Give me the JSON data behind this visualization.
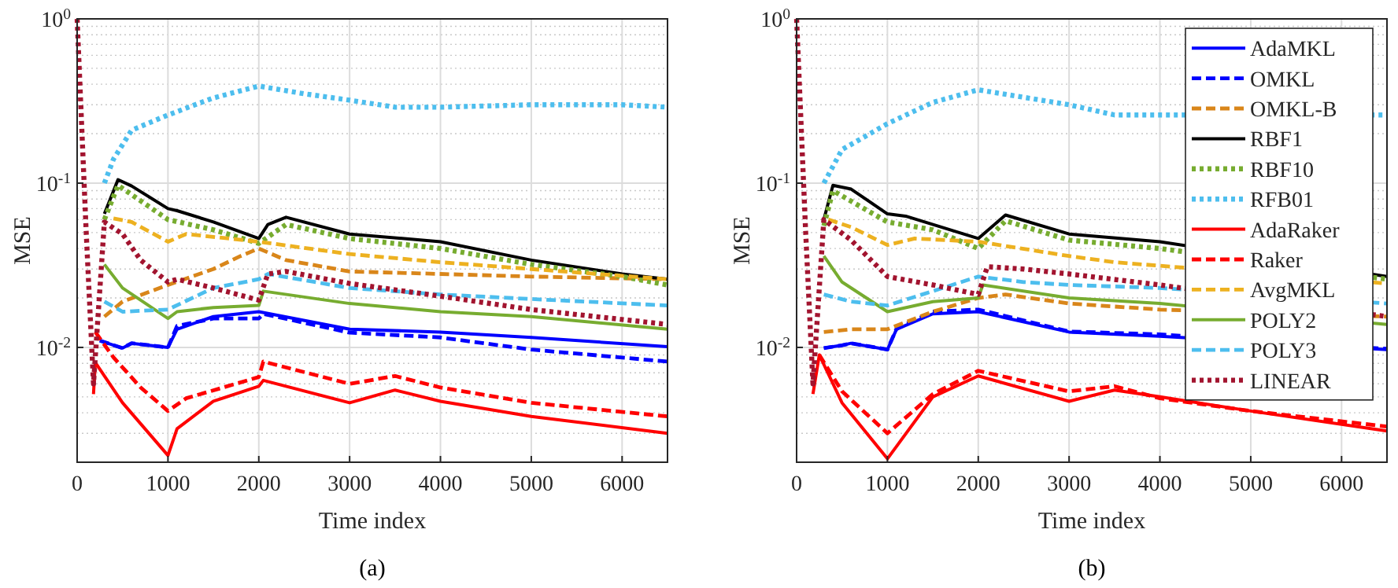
{
  "chart_data": [
    {
      "type": "line",
      "title": "(a)",
      "xlabel": "Time index",
      "ylabel": "MSE",
      "xlim": [
        0,
        6500
      ],
      "xticks": [
        0,
        1000,
        2000,
        3000,
        4000,
        5000,
        6000
      ],
      "ylim": [
        0.002,
        1
      ],
      "yticks": [
        {
          "value": 0.01,
          "label": "10$^{-2}$"
        },
        {
          "value": 0.1,
          "label": "10$^{-1}$"
        },
        {
          "value": 1,
          "label": "10$^{0}$"
        }
      ],
      "log": true,
      "grid": true,
      "legend": false,
      "series": [
        {
          "color": "#0000ff",
          "line_style": "solid",
          "x": [
            250,
            500,
            600,
            1000,
            1100,
            1500,
            2000,
            3000,
            4000,
            5000,
            6500
          ],
          "values": [
            0.011,
            0.0099,
            0.0106,
            0.01,
            0.0129,
            0.0154,
            0.0165,
            0.0129,
            0.0124,
            0.0115,
            0.0101
          ]
        },
        {
          "color": "#0000ff",
          "line_style": "dashed",
          "x": [
            250,
            500,
            600,
            1000,
            1100,
            1500,
            2000,
            2050,
            3000,
            4000,
            5000,
            6500
          ],
          "values": [
            0.011,
            0.0099,
            0.0106,
            0.01,
            0.0135,
            0.015,
            0.015,
            0.016,
            0.0123,
            0.0115,
            0.0097,
            0.0082
          ]
        },
        {
          "color": "#d9861a",
          "line_style": "dashed",
          "x": [
            300,
            500,
            1000,
            1500,
            1800,
            2000,
            2300,
            3000,
            4000,
            5000,
            6500
          ],
          "values": [
            0.0154,
            0.019,
            0.024,
            0.03,
            0.036,
            0.04,
            0.034,
            0.029,
            0.028,
            0.027,
            0.026
          ]
        },
        {
          "color": "#000000",
          "line_style": "solid",
          "x": [
            300,
            450,
            600,
            1000,
            1100,
            1500,
            2000,
            2100,
            2300,
            3000,
            4000,
            5000,
            6000,
            6500
          ],
          "values": [
            0.065,
            0.105,
            0.096,
            0.07,
            0.068,
            0.058,
            0.046,
            0.056,
            0.062,
            0.049,
            0.044,
            0.034,
            0.028,
            0.026
          ]
        },
        {
          "color": "#77ac30",
          "line_style": "dotted",
          "x": [
            300,
            450,
            1000,
            1500,
            2000,
            2300,
            3000,
            4000,
            5000,
            6000,
            6500
          ],
          "values": [
            0.06,
            0.097,
            0.06,
            0.052,
            0.043,
            0.056,
            0.046,
            0.04,
            0.032,
            0.027,
            0.024
          ]
        },
        {
          "color": "#4dbeee",
          "line_style": "dotted",
          "x": [
            300,
            400,
            600,
            1000,
            1500,
            2000,
            2500,
            3000,
            3500,
            4000,
            5000,
            6000,
            6500
          ],
          "values": [
            0.1,
            0.14,
            0.21,
            0.26,
            0.33,
            0.39,
            0.35,
            0.32,
            0.29,
            0.29,
            0.3,
            0.3,
            0.29
          ]
        },
        {
          "color": "#ff0000",
          "line_style": "solid",
          "x": [
            180,
            200,
            500,
            1000,
            1100,
            1500,
            2000,
            2050,
            3000,
            3500,
            4000,
            5000,
            6500
          ],
          "values": [
            0.0052,
            0.0081,
            0.0046,
            0.0022,
            0.0032,
            0.0047,
            0.0058,
            0.0063,
            0.0046,
            0.0055,
            0.0047,
            0.0038,
            0.003
          ]
        },
        {
          "color": "#ff0000",
          "line_style": "dashed",
          "x": [
            200,
            400,
            700,
            1000,
            1200,
            2000,
            2050,
            3000,
            3500,
            4000,
            5000,
            6500
          ],
          "values": [
            0.0124,
            0.0087,
            0.0057,
            0.0041,
            0.0049,
            0.0066,
            0.0082,
            0.006,
            0.0067,
            0.0057,
            0.0046,
            0.0038
          ]
        },
        {
          "color": "#edb120",
          "line_style": "dashed",
          "x": [
            400,
            600,
            1000,
            1200,
            2000,
            3000,
            4000,
            5000,
            6500
          ],
          "values": [
            0.061,
            0.058,
            0.044,
            0.049,
            0.044,
            0.037,
            0.033,
            0.03,
            0.026
          ]
        },
        {
          "color": "#77ac30",
          "line_style": "solid",
          "x": [
            300,
            500,
            1000,
            1100,
            1500,
            2000,
            2050,
            3000,
            4000,
            5000,
            6500
          ],
          "values": [
            0.032,
            0.023,
            0.015,
            0.0165,
            0.0175,
            0.018,
            0.022,
            0.0185,
            0.0165,
            0.0154,
            0.0129
          ]
        },
        {
          "color": "#4dbeee",
          "line_style": "dashed",
          "x": [
            300,
            500,
            1000,
            1500,
            2000,
            2100,
            3000,
            4000,
            5000,
            6500
          ],
          "values": [
            0.019,
            0.0165,
            0.017,
            0.023,
            0.026,
            0.028,
            0.023,
            0.021,
            0.0197,
            0.018
          ]
        },
        {
          "color": "#a2142f",
          "line_style": "dotted",
          "x": [
            0,
            100,
            180,
            300,
            500,
            700,
            1000,
            1100,
            1500,
            2000,
            2100,
            2300,
            3000,
            4000,
            5000,
            6500
          ],
          "values": [
            1,
            0.05,
            0.006,
            0.058,
            0.049,
            0.034,
            0.025,
            0.026,
            0.023,
            0.0194,
            0.028,
            0.029,
            0.0245,
            0.0205,
            0.017,
            0.0138
          ]
        }
      ]
    },
    {
      "type": "line",
      "title": "(b)",
      "xlabel": "Time index",
      "ylabel": "MSE",
      "xlim": [
        0,
        6500
      ],
      "xticks": [
        0,
        1000,
        2000,
        3000,
        4000,
        5000,
        6000
      ],
      "ylim": [
        0.002,
        1
      ],
      "yticks": [
        {
          "value": 0.01,
          "label": "10$^{-2}$"
        },
        {
          "value": 0.1,
          "label": "10$^{-1}$"
        },
        {
          "value": 1,
          "label": "10$^{0}$"
        }
      ],
      "log": true,
      "grid": true,
      "legend": "top right",
      "series": [
        {
          "name": "AdaMKL",
          "color": "#0000ff",
          "line_style": "solid",
          "x": [
            300,
            500,
            600,
            1000,
            1100,
            1500,
            2000,
            3000,
            4000,
            6500
          ],
          "values": [
            0.0099,
            0.0103,
            0.0106,
            0.0097,
            0.0129,
            0.016,
            0.0165,
            0.0124,
            0.0117,
            0.0097
          ]
        },
        {
          "name": "OMKL",
          "color": "#0000ff",
          "line_style": "dashed",
          "x": [
            300,
            500,
            600,
            1000,
            1100,
            1500,
            2000,
            3000,
            4000,
            6500
          ],
          "values": [
            0.0099,
            0.0103,
            0.0106,
            0.0097,
            0.013,
            0.0165,
            0.017,
            0.0125,
            0.012,
            0.0098
          ]
        },
        {
          "name": "OMKL-B",
          "color": "#d9861a",
          "line_style": "dashed",
          "x": [
            300,
            600,
            1000,
            1500,
            2000,
            2300,
            3000,
            4000,
            6500
          ],
          "values": [
            0.0124,
            0.0129,
            0.0129,
            0.0165,
            0.02,
            0.021,
            0.0185,
            0.017,
            0.0154
          ]
        },
        {
          "name": "RBF1",
          "color": "#000000",
          "line_style": "solid",
          "x": [
            300,
            400,
            600,
            1000,
            1200,
            2000,
            2300,
            3000,
            4000,
            6500
          ],
          "values": [
            0.06,
            0.097,
            0.092,
            0.065,
            0.063,
            0.046,
            0.064,
            0.049,
            0.044,
            0.027
          ]
        },
        {
          "name": "RBF10",
          "color": "#77ac30",
          "line_style": "dotted",
          "x": [
            300,
            400,
            1000,
            1500,
            2000,
            2300,
            3000,
            4000,
            6500
          ],
          "values": [
            0.055,
            0.09,
            0.058,
            0.052,
            0.04,
            0.059,
            0.045,
            0.04,
            0.026
          ]
        },
        {
          "name": "RFB01",
          "color": "#4dbeee",
          "line_style": "dotted",
          "x": [
            300,
            500,
            1000,
            1500,
            2000,
            3000,
            3500,
            6500
          ],
          "values": [
            0.1,
            0.16,
            0.23,
            0.31,
            0.37,
            0.3,
            0.26,
            0.26
          ]
        },
        {
          "name": "AdaRaker",
          "color": "#ff0000",
          "line_style": "solid",
          "x": [
            180,
            250,
            500,
            1000,
            1500,
            2000,
            3000,
            3500,
            4000,
            5000,
            6500
          ],
          "values": [
            0.0052,
            0.009,
            0.0046,
            0.0021,
            0.005,
            0.0067,
            0.0047,
            0.0055,
            0.005,
            0.0041,
            0.0031
          ]
        },
        {
          "name": "Raker",
          "color": "#ff0000",
          "line_style": "dashed",
          "x": [
            250,
            500,
            1000,
            1500,
            2000,
            3000,
            3500,
            4000,
            5000,
            6500
          ],
          "values": [
            0.009,
            0.0054,
            0.003,
            0.0052,
            0.0072,
            0.0054,
            0.0058,
            0.0049,
            0.0041,
            0.0033
          ]
        },
        {
          "name": "AvgMKL",
          "color": "#edb120",
          "line_style": "dashed",
          "x": [
            350,
            600,
            1000,
            1300,
            2000,
            3000,
            3500,
            6500
          ],
          "values": [
            0.06,
            0.054,
            0.042,
            0.046,
            0.044,
            0.036,
            0.033,
            0.0245
          ]
        },
        {
          "name": "POLY2",
          "color": "#77ac30",
          "line_style": "solid",
          "x": [
            300,
            500,
            1000,
            1500,
            2000,
            2050,
            3000,
            4000,
            6500
          ],
          "values": [
            0.036,
            0.025,
            0.0165,
            0.019,
            0.02,
            0.024,
            0.02,
            0.0185,
            0.0138
          ]
        },
        {
          "name": "POLY3",
          "color": "#4dbeee",
          "line_style": "dashed",
          "x": [
            300,
            600,
            1000,
            1500,
            2000,
            2500,
            3000,
            4000,
            6500
          ],
          "values": [
            0.021,
            0.019,
            0.018,
            0.022,
            0.027,
            0.025,
            0.024,
            0.023,
            0.0185
          ]
        },
        {
          "name": "LINEAR",
          "color": "#a2142f",
          "line_style": "dotted",
          "x": [
            0,
            100,
            180,
            300,
            600,
            1000,
            1500,
            2000,
            2100,
            2500,
            3000,
            4000,
            6500
          ],
          "values": [
            1,
            0.05,
            0.006,
            0.06,
            0.045,
            0.027,
            0.024,
            0.021,
            0.031,
            0.03,
            0.028,
            0.024,
            0.0154
          ]
        }
      ]
    }
  ]
}
